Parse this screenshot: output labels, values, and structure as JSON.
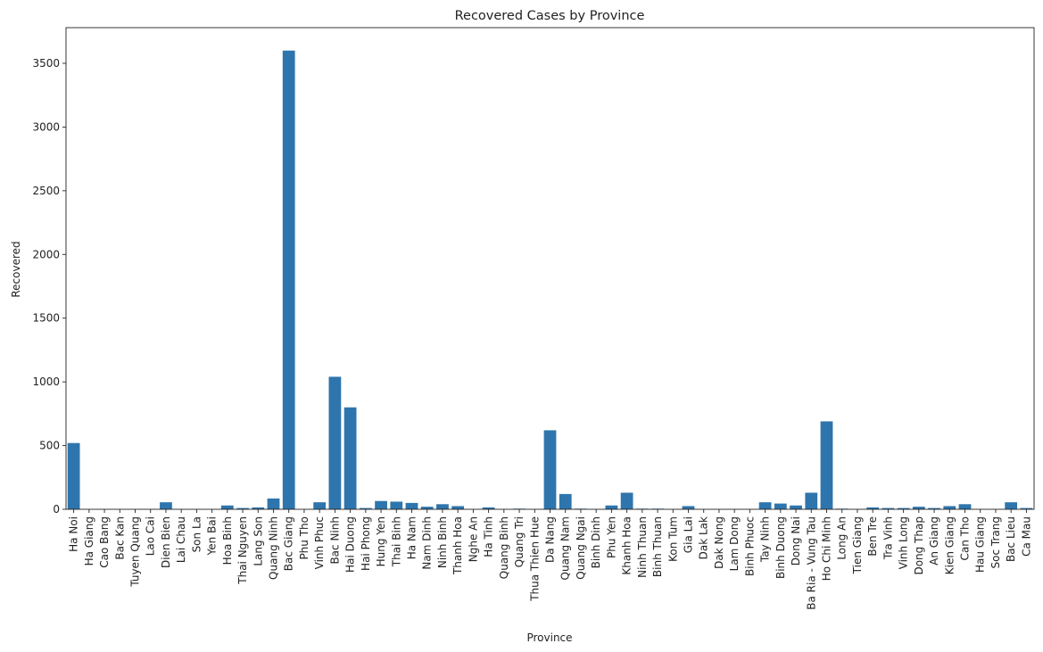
{
  "chart_data": {
    "type": "bar",
    "title": "Recovered Cases by Province",
    "xlabel": "Province",
    "ylabel": "Recovered",
    "ylim": [
      0,
      3780
    ],
    "yticks": [
      0,
      500,
      1000,
      1500,
      2000,
      2500,
      3000,
      3500
    ],
    "bar_color": "#2e75ad",
    "grid": false,
    "categories": [
      "Ha Noi",
      "Ha Giang",
      "Cao Bang",
      "Bac Kan",
      "Tuyen Quang",
      "Lao Cai",
      "Dien Bien",
      "Lai Chau",
      "Son La",
      "Yen Bai",
      "Hoa Binh",
      "Thai Nguyen",
      "Lang Son",
      "Quang Ninh",
      "Bac Giang",
      "Phu Tho",
      "Vinh Phuc",
      "Bac Ninh",
      "Hai Duong",
      "Hai Phong",
      "Hung Yen",
      "Thai Binh",
      "Ha Nam",
      "Nam Dinh",
      "Ninh Binh",
      "Thanh Hoa",
      "Nghe An",
      "Ha Tinh",
      "Quang Binh",
      "Quang Tri",
      "Thua Thien Hue",
      "Da Nang",
      "Quang Nam",
      "Quang Ngai",
      "Binh Dinh",
      "Phu Yen",
      "Khanh Hoa",
      "Ninh Thuan",
      "Binh Thuan",
      "Kon Tum",
      "Gia Lai",
      "Dak Lak",
      "Dak Nong",
      "Lam Dong",
      "Binh Phuoc",
      "Tay Ninh",
      "Binh Duong",
      "Dong Nai",
      "Ba Ria - Vung Tau",
      "Ho Chi Minh",
      "Long An",
      "Tien Giang",
      "Ben Tre",
      "Tra Vinh",
      "Vinh Long",
      "Dong Thap",
      "An Giang",
      "Kien Giang",
      "Can Tho",
      "Hau Giang",
      "Soc Trang",
      "Bac Lieu",
      "Ca Mau"
    ],
    "values": [
      520,
      0,
      0,
      0,
      0,
      0,
      55,
      0,
      0,
      0,
      30,
      10,
      15,
      85,
      3600,
      0,
      55,
      1040,
      800,
      10,
      65,
      60,
      50,
      20,
      40,
      25,
      0,
      15,
      0,
      5,
      0,
      620,
      120,
      5,
      0,
      30,
      130,
      5,
      5,
      0,
      25,
      0,
      0,
      0,
      0,
      55,
      45,
      30,
      130,
      690,
      5,
      0,
      15,
      10,
      10,
      20,
      10,
      25,
      40,
      0,
      0,
      55,
      10
    ]
  }
}
